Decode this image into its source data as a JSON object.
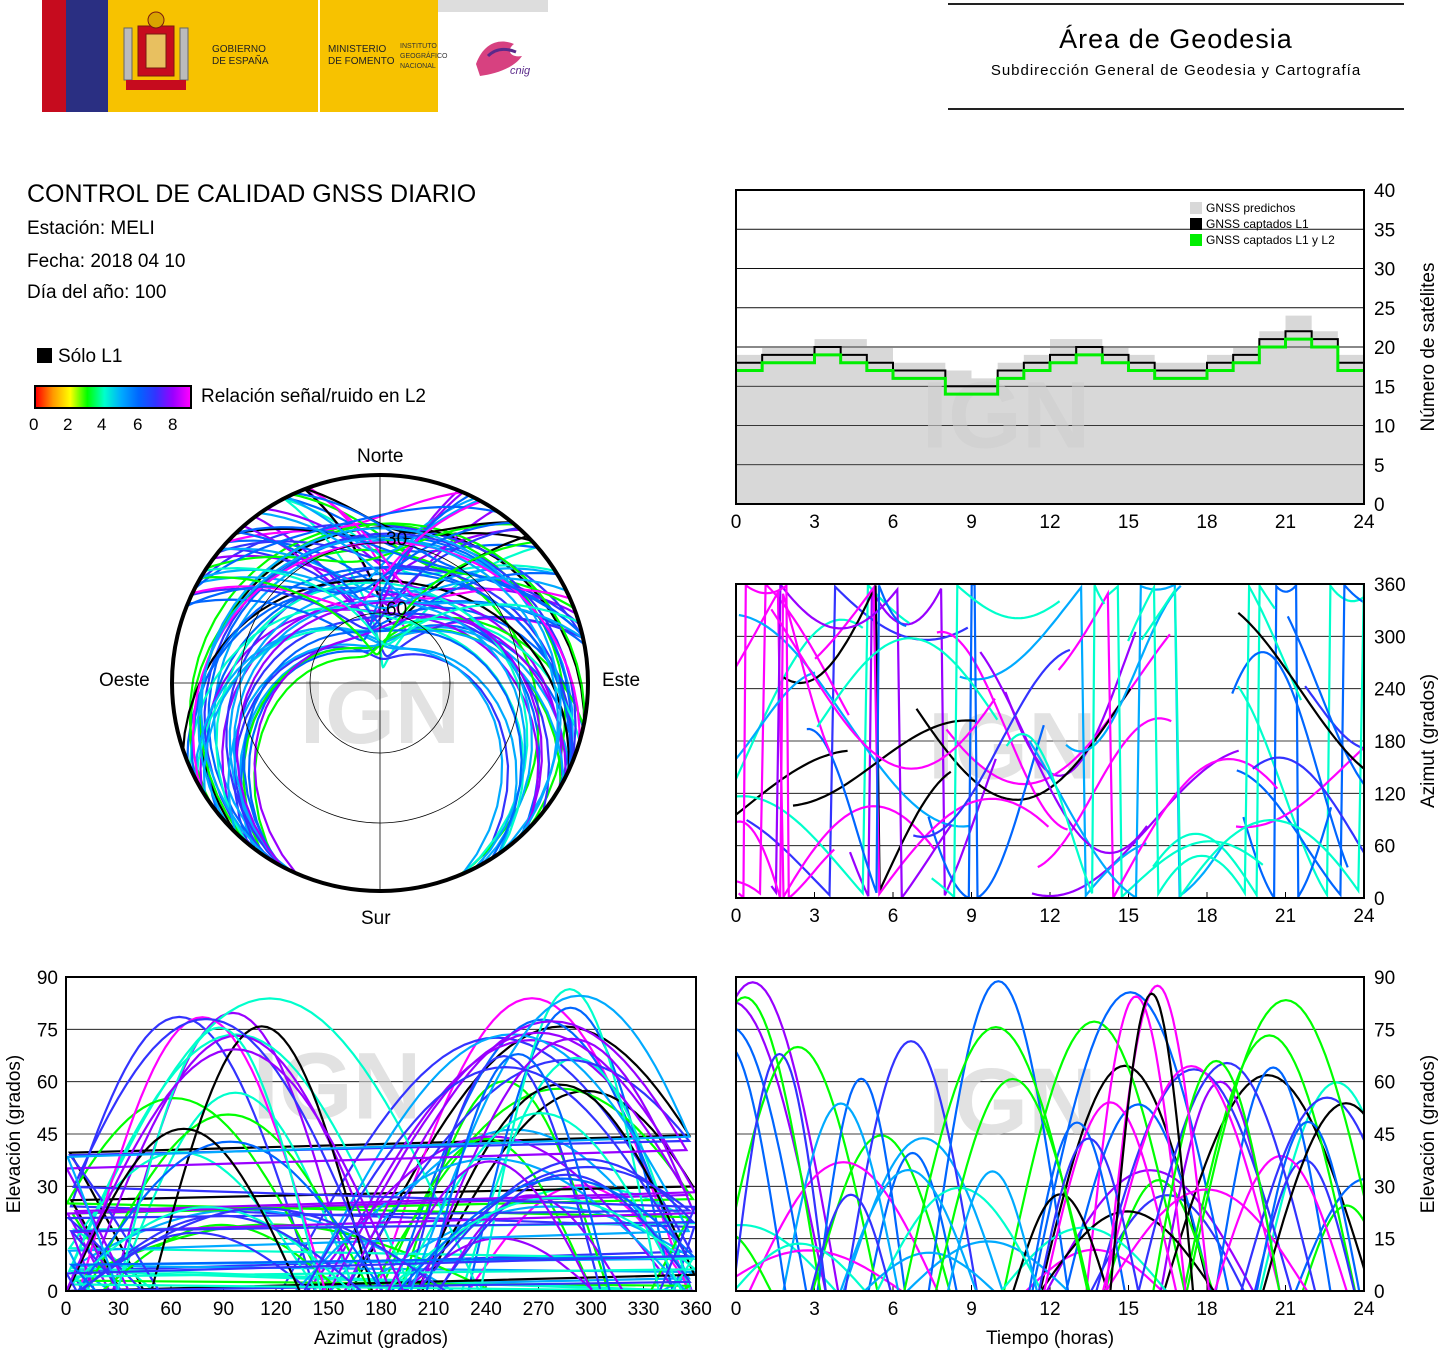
{
  "header": {
    "gov_line1": "GOBIERNO",
    "gov_line2": "DE ESPAÑA",
    "min_line1": "MINISTERIO",
    "min_line2": "DE FOMENTO",
    "inst_line1": "INSTITUTO",
    "inst_line2": "GEOGRÁFICO",
    "inst_line3": "NACIONAL",
    "cnig": "cnig",
    "area_title": "Área de Geodesia",
    "area_subtitle": "Subdirección General de Geodesia y Cartografía"
  },
  "report": {
    "title": "CONTROL DE CALIDAD GNSS DIARIO",
    "station": "Estación: MELI",
    "date": "Fecha: 2018 04 10",
    "doy": "Día del año: 100"
  },
  "legend": {
    "l1_only": "Sólo L1",
    "snr_label": "Relación señal/ruido en L2",
    "snr_ticks": [
      "0",
      "2",
      "4",
      "6",
      "8"
    ]
  },
  "watermark": "IGN",
  "colors": {
    "predicted": "#d8d8d8",
    "l1": "#000000",
    "l1l2": "#00ee00",
    "frame": "#000000",
    "snr_scale": [
      "#ff0000",
      "#ff9900",
      "#ffff00",
      "#00ff00",
      "#00ffcc",
      "#00aaff",
      "#0066ff",
      "#3333ff",
      "#9900ff",
      "#ff00ff"
    ]
  },
  "chart_data": [
    {
      "id": "satcount",
      "type": "line",
      "ylabel": "Número de satélites",
      "xlim": [
        0,
        24
      ],
      "ylim": [
        0,
        40
      ],
      "x_ticks": [
        "0",
        "3",
        "6",
        "9",
        "12",
        "15",
        "18",
        "21",
        "24"
      ],
      "y_ticks": [
        "0",
        "5",
        "10",
        "15",
        "20",
        "25",
        "30",
        "35",
        "40"
      ],
      "grid": true,
      "legend_position": "top-right",
      "x": [
        0,
        1,
        2,
        3,
        4,
        5,
        6,
        7,
        8,
        9,
        10,
        11,
        12,
        13,
        14,
        15,
        16,
        17,
        18,
        19,
        20,
        21,
        22,
        23,
        24
      ],
      "series": [
        {
          "name": "GNSS predichos",
          "values": [
            19,
            20,
            20,
            21,
            21,
            20,
            18,
            18,
            17,
            16,
            18,
            19,
            21,
            21,
            20,
            19,
            18,
            18,
            19,
            20,
            22,
            24,
            22,
            19,
            19
          ]
        },
        {
          "name": "GNSS captados L1",
          "values": [
            18,
            19,
            19,
            20,
            19,
            18,
            17,
            17,
            15,
            15,
            17,
            18,
            19,
            20,
            19,
            18,
            17,
            17,
            18,
            19,
            21,
            22,
            21,
            18,
            18
          ]
        },
        {
          "name": "GNSS captados L1 y L2",
          "values": [
            17,
            18,
            18,
            19,
            18,
            17,
            16,
            16,
            14,
            14,
            16,
            17,
            18,
            19,
            18,
            17,
            16,
            16,
            17,
            18,
            20,
            21,
            20,
            17,
            17
          ]
        }
      ]
    },
    {
      "id": "azimuth-time",
      "type": "scatter",
      "ylabel": "Azimut (grados)",
      "xlim": [
        0,
        24
      ],
      "ylim": [
        0,
        360
      ],
      "x_ticks": [
        "0",
        "3",
        "6",
        "9",
        "12",
        "15",
        "18",
        "21",
        "24"
      ],
      "y_ticks": [
        "0",
        "60",
        "120",
        "180",
        "240",
        "300",
        "360"
      ],
      "grid": true
    },
    {
      "id": "elev-azimuth",
      "type": "scatter",
      "xlabel": "Azimut (grados)",
      "ylabel": "Elevación (grados)",
      "xlim": [
        0,
        360
      ],
      "ylim": [
        0,
        90
      ],
      "x_ticks": [
        "0",
        "30",
        "60",
        "90",
        "120",
        "150",
        "180",
        "210",
        "240",
        "270",
        "300",
        "330",
        "360"
      ],
      "y_ticks": [
        "0",
        "15",
        "30",
        "45",
        "60",
        "75",
        "90"
      ],
      "grid": true
    },
    {
      "id": "elev-time",
      "type": "scatter",
      "xlabel": "Tiempo (horas)",
      "ylabel": "Elevación (grados)",
      "xlim": [
        0,
        24
      ],
      "ylim": [
        0,
        90
      ],
      "x_ticks": [
        "0",
        "3",
        "6",
        "9",
        "12",
        "15",
        "18",
        "21",
        "24"
      ],
      "y_ticks": [
        "0",
        "15",
        "30",
        "45",
        "60",
        "75",
        "90"
      ],
      "grid": true
    },
    {
      "id": "skyplot",
      "type": "scatter",
      "labels": {
        "north": "Norte",
        "south": "Sur",
        "east": "Este",
        "west": "Oeste"
      },
      "ring_labels": [
        "30",
        "60"
      ]
    }
  ]
}
